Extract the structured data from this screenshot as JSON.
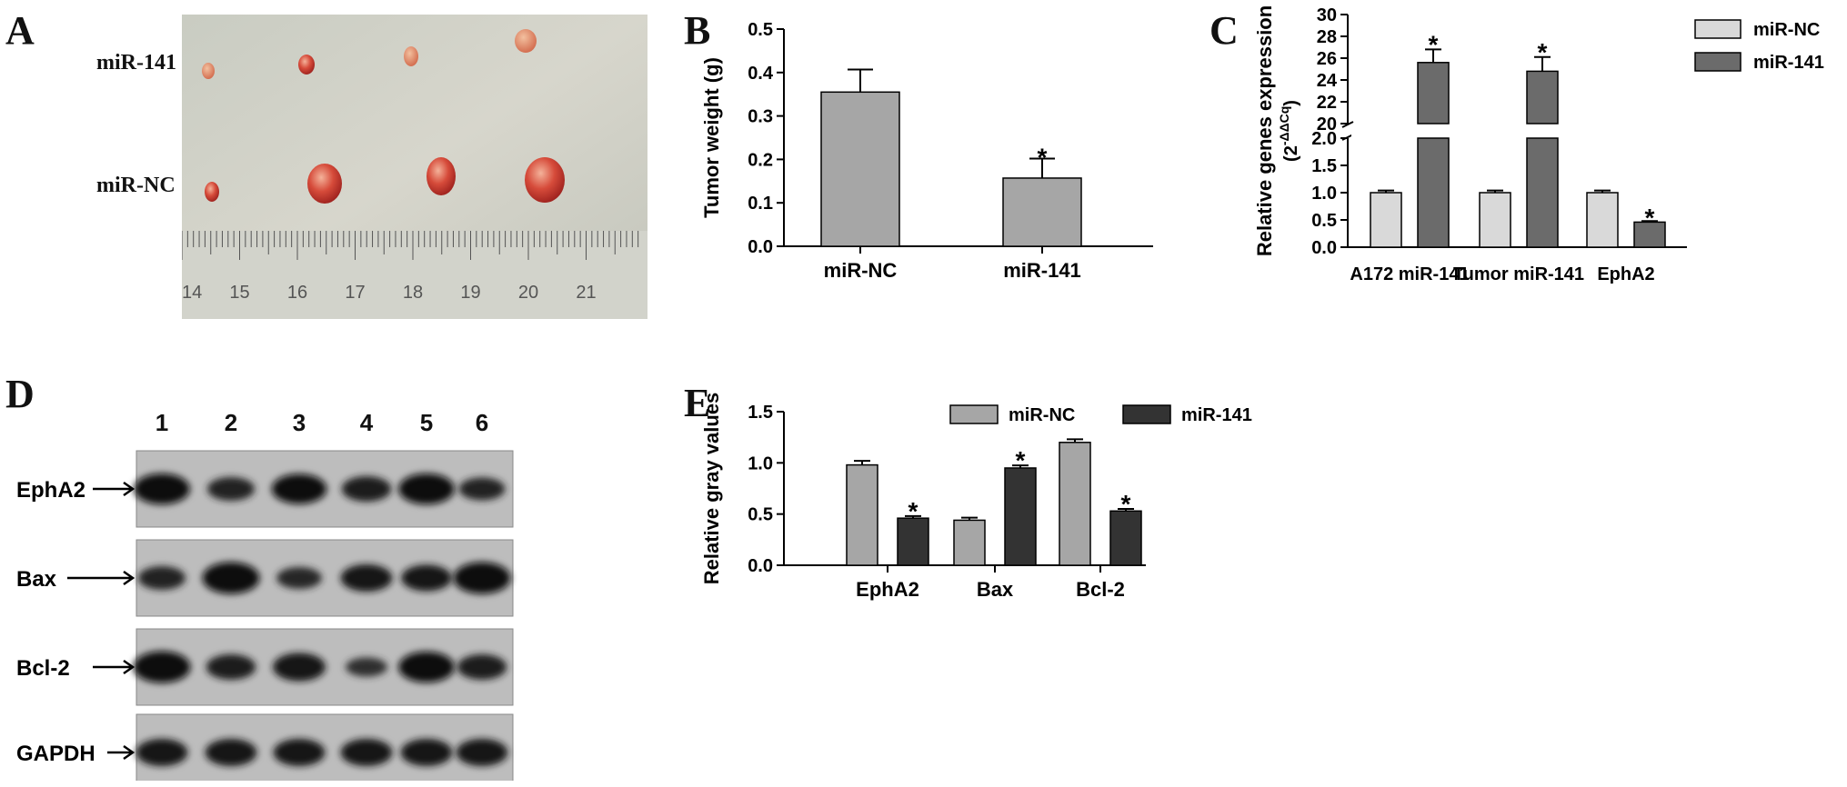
{
  "panels": {
    "a": "A",
    "b": "B",
    "c": "C",
    "d": "D",
    "e": "E"
  },
  "panel_a": {
    "row_labels": [
      "miR-141",
      "miR-NC"
    ],
    "ruler_numbers": [
      "14",
      "15",
      "16",
      "17",
      "18",
      "19",
      "20",
      "21"
    ]
  },
  "panel_d": {
    "lane_numbers": [
      "1",
      "2",
      "3",
      "4",
      "5",
      "6"
    ],
    "proteins": [
      "EphA2",
      "Bax",
      "Bcl-2",
      "GAPDH"
    ],
    "band_intensity": [
      [
        0.9,
        0.5,
        0.85,
        0.6,
        0.9,
        0.45
      ],
      [
        0.5,
        0.95,
        0.4,
        0.7,
        0.65,
        0.95
      ],
      [
        0.95,
        0.6,
        0.75,
        0.25,
        0.9,
        0.6
      ],
      [
        0.7,
        0.7,
        0.7,
        0.7,
        0.7,
        0.7
      ]
    ]
  },
  "colors": {
    "light_gray": "#d9d9d9",
    "mid_gray": "#a6a6a6",
    "dark_gray": "#6b6b6b",
    "near_black": "#333333"
  },
  "chart_data": [
    {
      "id": "B",
      "type": "bar",
      "categories": [
        "miR-NC",
        "miR-141"
      ],
      "values": [
        0.355,
        0.157
      ],
      "errors": [
        0.052,
        0.045
      ],
      "significance": [
        "",
        "*"
      ],
      "ylabel": "Tumor weight (g)",
      "ylim": [
        0,
        0.5
      ],
      "yticks": [
        "0.0",
        "0.1",
        "0.2",
        "0.3",
        "0.4",
        "0.5"
      ]
    },
    {
      "id": "C",
      "type": "bar",
      "categories": [
        "A172 miR-141",
        "Tumor miR-141",
        "EphA2"
      ],
      "series": [
        {
          "name": "miR-NC",
          "values": [
            1.0,
            1.0,
            1.0
          ],
          "errors": [
            0.04,
            0.04,
            0.04
          ],
          "significance": [
            "",
            "",
            ""
          ]
        },
        {
          "name": "miR-141",
          "values": [
            25.6,
            24.8,
            0.46
          ],
          "errors": [
            1.2,
            1.3,
            0.02
          ],
          "significance": [
            "*",
            "*",
            "*"
          ]
        }
      ],
      "ylabel_main": "Relative genes expression",
      "ylabel_sub": "(2",
      "ylabel_exp": "-ΔΔCq",
      "ylabel_end": ")",
      "ylim_lower": [
        0,
        2.0
      ],
      "ylim_upper": [
        20,
        30
      ],
      "yticks_lower": [
        "0.0",
        "0.5",
        "1.0",
        "1.5",
        "2.0"
      ],
      "yticks_upper": [
        "20",
        "22",
        "24",
        "26",
        "28",
        "30"
      ],
      "axis_break": true,
      "legend_position": "top-right"
    },
    {
      "id": "E",
      "type": "bar",
      "categories": [
        "EphA2",
        "Bax",
        "Bcl-2"
      ],
      "series": [
        {
          "name": "miR-NC",
          "values": [
            0.98,
            0.44,
            1.2
          ],
          "errors": [
            0.04,
            0.025,
            0.03
          ],
          "significance": [
            "",
            "",
            ""
          ]
        },
        {
          "name": "miR-141",
          "values": [
            0.46,
            0.95,
            0.53
          ],
          "errors": [
            0.02,
            0.025,
            0.02
          ],
          "significance": [
            "*",
            "*",
            "*"
          ]
        }
      ],
      "ylabel": "Relative gray values",
      "ylim": [
        0,
        1.5
      ],
      "yticks": [
        "0.0",
        "0.5",
        "1.0",
        "1.5"
      ],
      "legend_position": "top"
    }
  ]
}
